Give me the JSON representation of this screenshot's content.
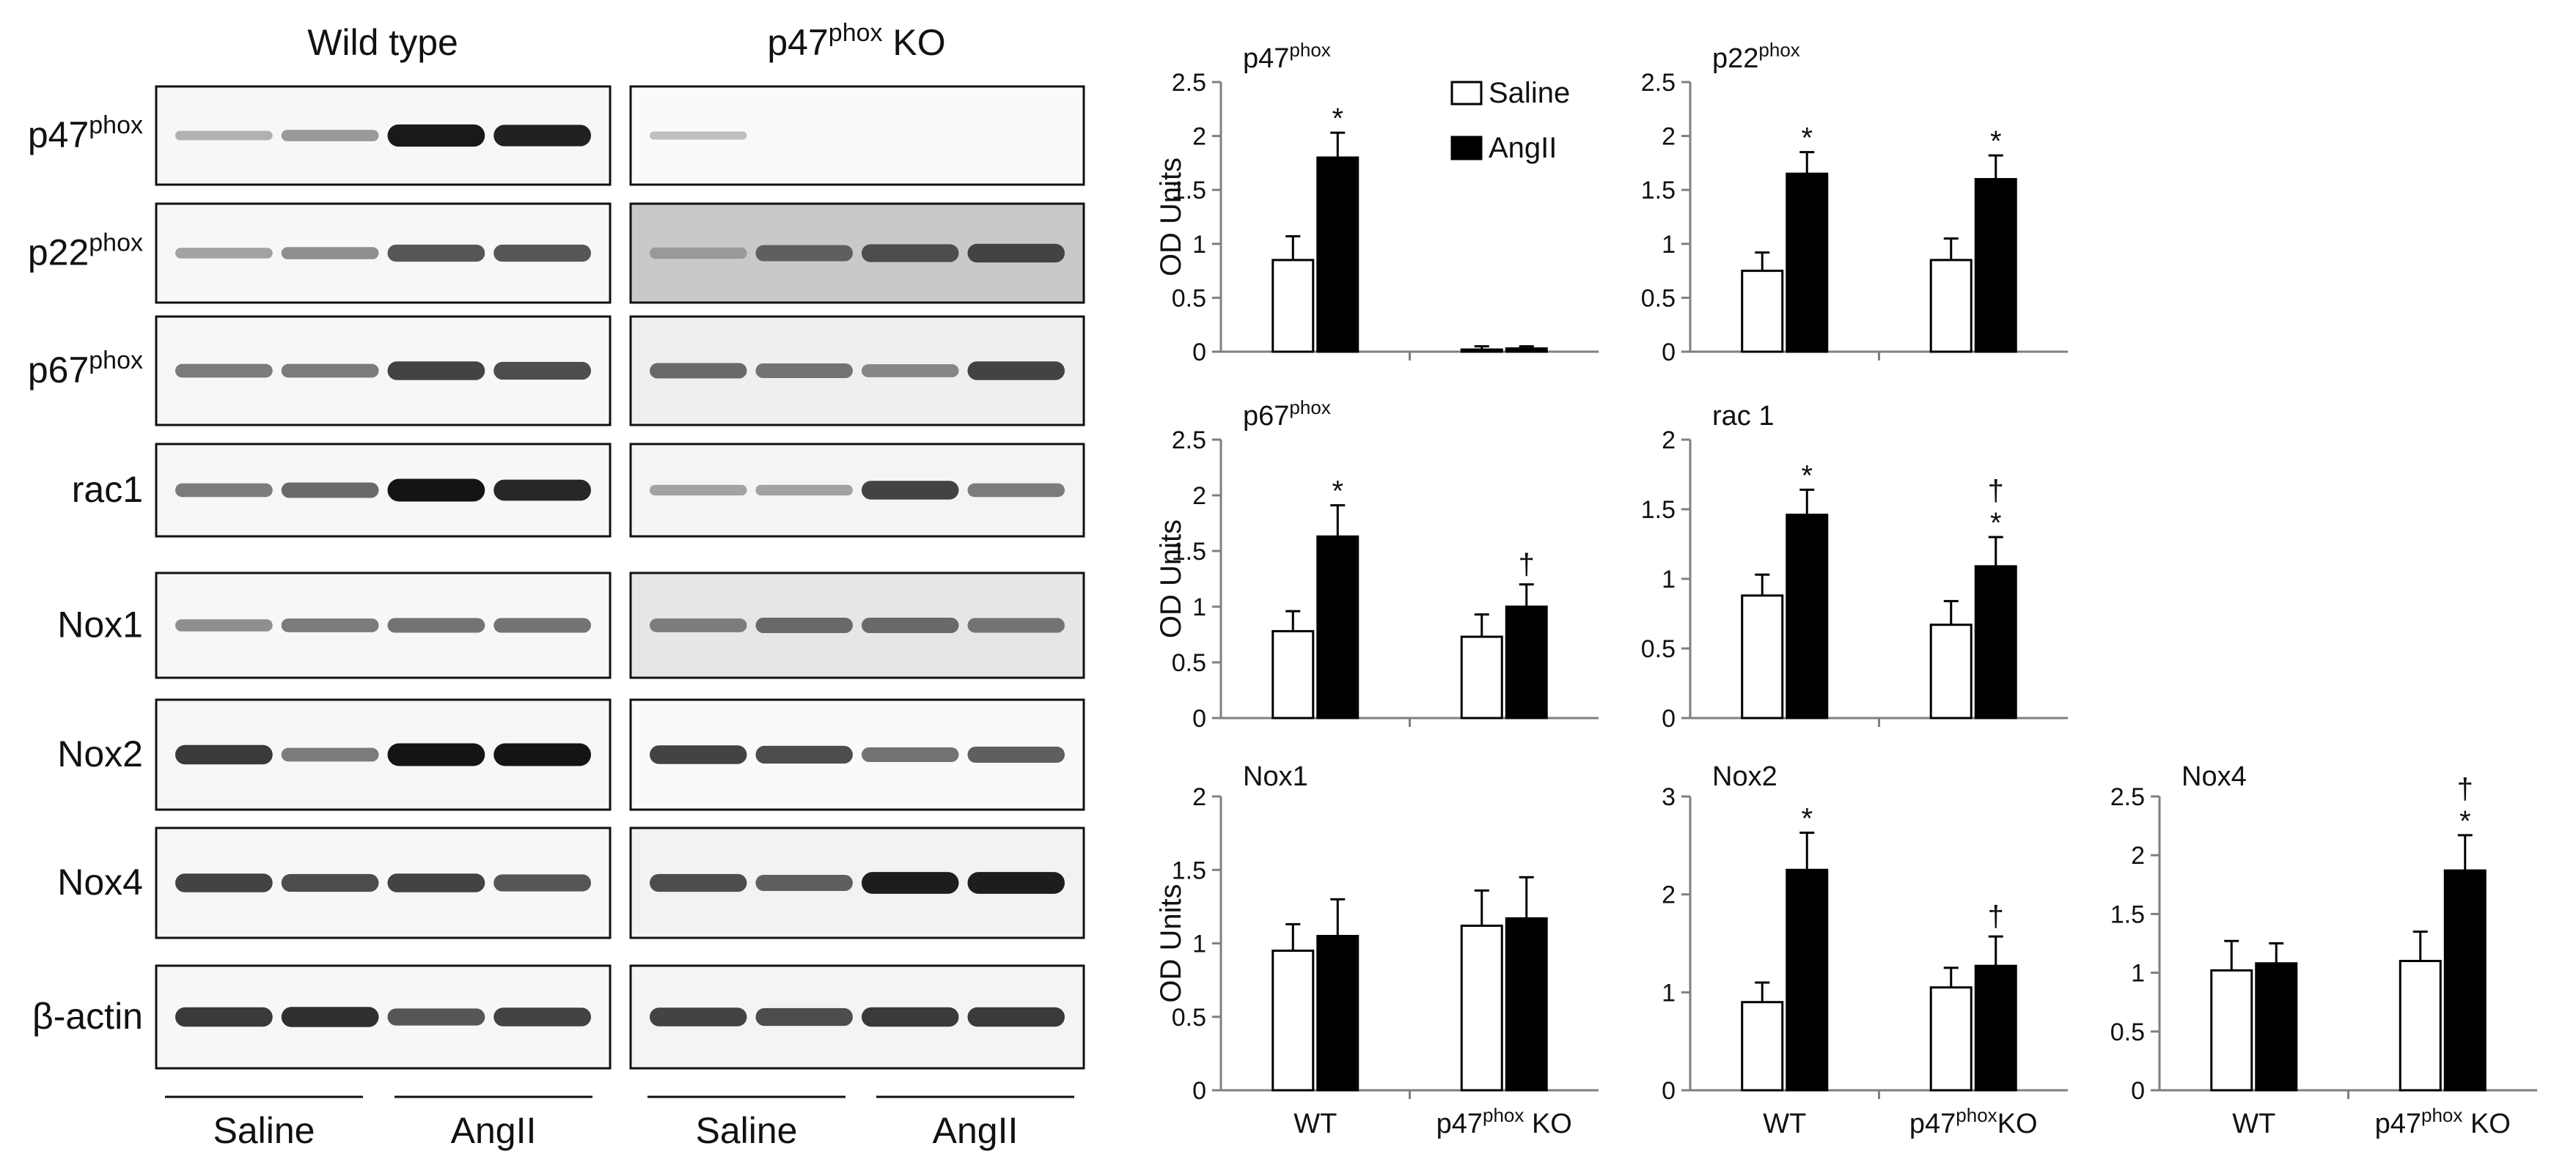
{
  "blots": {
    "group_titles": [
      {
        "main": "Wild type",
        "sup": ""
      },
      {
        "main": "p47",
        "sup": "phox",
        "suffix": " KO"
      }
    ],
    "rows": [
      {
        "label": "p47",
        "sup": "phox",
        "wt": [
          0.12,
          0.25,
          0.92,
          0.88
        ],
        "ko": [
          0.05,
          0.0,
          0.0,
          0.0
        ],
        "ko_bg": "#fafafa"
      },
      {
        "label": "p22",
        "sup": "phox",
        "wt": [
          0.2,
          0.3,
          0.6,
          0.6
        ],
        "ko": [
          0.25,
          0.55,
          0.65,
          0.7
        ],
        "ko_bg": "#c9c9c9"
      },
      {
        "label": "p67",
        "sup": "phox",
        "wt": [
          0.4,
          0.4,
          0.7,
          0.65
        ],
        "ko": [
          0.5,
          0.45,
          0.35,
          0.7
        ],
        "ko_bg": "#efefef"
      },
      {
        "label": "rac1",
        "sup": "",
        "wt": [
          0.4,
          0.5,
          0.95,
          0.85
        ],
        "ko": [
          0.2,
          0.2,
          0.7,
          0.4
        ],
        "ko_bg": "#f4f4f4"
      },
      {
        "label": "Nox1",
        "sup": "",
        "wt": [
          0.3,
          0.4,
          0.45,
          0.45
        ],
        "ko": [
          0.4,
          0.5,
          0.5,
          0.45
        ],
        "ko_bg": "#e6e6e6"
      },
      {
        "label": "Nox2",
        "sup": "",
        "wt": [
          0.75,
          0.4,
          0.95,
          0.95
        ],
        "ko": [
          0.7,
          0.65,
          0.45,
          0.55
        ],
        "ko_bg": "#fafafa"
      },
      {
        "label": "Nox4",
        "sup": "",
        "wt": [
          0.7,
          0.65,
          0.7,
          0.6
        ],
        "ko": [
          0.65,
          0.55,
          0.9,
          0.9
        ],
        "ko_bg": "#f2f2f2"
      },
      {
        "label": "β-actin",
        "sup": "",
        "wt": [
          0.75,
          0.8,
          0.6,
          0.7
        ],
        "ko": [
          0.7,
          0.65,
          0.75,
          0.75
        ],
        "ko_bg": "#f4f4f4"
      }
    ],
    "bottom_labels": [
      "Saline",
      "AngII",
      "Saline",
      "AngII"
    ]
  },
  "legend": [
    {
      "label": "Saline",
      "fill": "#ffffff"
    },
    {
      "label": "AngII",
      "fill": "#000000"
    }
  ],
  "colors": {
    "saline": "#ffffff",
    "angii": "#000000",
    "axis": "#7f7f7f"
  },
  "chart_data": [
    {
      "type": "bar",
      "title": "p47",
      "title_sup": "phox",
      "ylabel": "OD Units",
      "ylim": [
        0,
        2.5
      ],
      "yticks": [
        "0",
        "0.5",
        "1",
        "1.5",
        "2",
        "2.5"
      ],
      "categories": [
        {
          "main": "WT",
          "sup": "",
          "suffix": ""
        },
        {
          "main": "p47",
          "sup": "phox",
          "suffix": " KO"
        }
      ],
      "show_xlabels": false,
      "series": [
        {
          "name": "Saline",
          "values": [
            0.85,
            0.02
          ],
          "errors": [
            0.22,
            0.03
          ]
        },
        {
          "name": "AngII",
          "values": [
            1.8,
            0.03
          ],
          "errors": [
            0.23,
            0.02
          ]
        }
      ],
      "annotations": [
        [
          "",
          ""
        ],
        [
          "*",
          ""
        ]
      ]
    },
    {
      "type": "bar",
      "title": "p22",
      "title_sup": "phox",
      "ylabel": "",
      "ylim": [
        0,
        2.5
      ],
      "yticks": [
        "0",
        "0.5",
        "1",
        "1.5",
        "2",
        "2.5"
      ],
      "categories": [
        {
          "main": "WT",
          "sup": "",
          "suffix": ""
        },
        {
          "main": "p47",
          "sup": "phox",
          "suffix": " KO"
        }
      ],
      "show_xlabels": false,
      "series": [
        {
          "name": "Saline",
          "values": [
            0.75,
            0.85
          ],
          "errors": [
            0.17,
            0.2
          ]
        },
        {
          "name": "AngII",
          "values": [
            1.65,
            1.6
          ],
          "errors": [
            0.2,
            0.22
          ]
        }
      ],
      "annotations": [
        [
          "",
          ""
        ],
        [
          "*",
          "*"
        ]
      ]
    },
    {
      "type": "bar",
      "title": "p67",
      "title_sup": "phox",
      "ylabel": "OD Units",
      "ylim": [
        0,
        2.5
      ],
      "yticks": [
        "0",
        "0.5",
        "1",
        "1.5",
        "2",
        "2.5"
      ],
      "categories": [
        {
          "main": "WT",
          "sup": "",
          "suffix": ""
        },
        {
          "main": "p47",
          "sup": "phox",
          "suffix": " KO"
        }
      ],
      "show_xlabels": false,
      "series": [
        {
          "name": "Saline",
          "values": [
            0.78,
            0.73
          ],
          "errors": [
            0.18,
            0.2
          ]
        },
        {
          "name": "AngII",
          "values": [
            1.63,
            1.0
          ],
          "errors": [
            0.28,
            0.2
          ]
        }
      ],
      "annotations": [
        [
          "",
          ""
        ],
        [
          "*",
          "†"
        ]
      ]
    },
    {
      "type": "bar",
      "title": "rac 1",
      "title_sup": "",
      "ylabel": "",
      "ylim": [
        0,
        2
      ],
      "yticks": [
        "0",
        "0.5",
        "1",
        "1.5",
        "2"
      ],
      "categories": [
        {
          "main": "WT",
          "sup": "",
          "suffix": ""
        },
        {
          "main": "p47",
          "sup": "phox",
          "suffix": " KO"
        }
      ],
      "show_xlabels": false,
      "series": [
        {
          "name": "Saline",
          "values": [
            0.88,
            0.67
          ],
          "errors": [
            0.15,
            0.17
          ]
        },
        {
          "name": "AngII",
          "values": [
            1.46,
            1.09
          ],
          "errors": [
            0.18,
            0.21
          ]
        }
      ],
      "annotations": [
        [
          "",
          ""
        ],
        [
          "*",
          "†\n*"
        ]
      ]
    },
    {
      "type": "bar",
      "title": "Nox1",
      "title_sup": "",
      "ylabel": "OD Units",
      "ylim": [
        0,
        2
      ],
      "yticks": [
        "0",
        "0.5",
        "1",
        "1.5",
        "2"
      ],
      "categories": [
        {
          "main": "WT",
          "sup": "",
          "suffix": ""
        },
        {
          "main": "p47",
          "sup": "phox",
          "suffix": " KO"
        }
      ],
      "show_xlabels": true,
      "series": [
        {
          "name": "Saline",
          "values": [
            0.95,
            1.12
          ],
          "errors": [
            0.18,
            0.24
          ]
        },
        {
          "name": "AngII",
          "values": [
            1.05,
            1.17
          ],
          "errors": [
            0.25,
            0.28
          ]
        }
      ],
      "annotations": [
        [
          "",
          ""
        ],
        [
          "",
          ""
        ]
      ]
    },
    {
      "type": "bar",
      "title": "Nox2",
      "title_sup": "",
      "ylabel": "",
      "ylim": [
        0,
        3
      ],
      "yticks": [
        "0",
        "1",
        "2",
        "3"
      ],
      "categories": [
        {
          "main": "WT",
          "sup": "",
          "suffix": ""
        },
        {
          "main": "p47",
          "sup": "phox",
          "suffix": "KO"
        }
      ],
      "show_xlabels": true,
      "series": [
        {
          "name": "Saline",
          "values": [
            0.9,
            1.05
          ],
          "errors": [
            0.2,
            0.2
          ]
        },
        {
          "name": "AngII",
          "values": [
            2.25,
            1.27
          ],
          "errors": [
            0.38,
            0.3
          ]
        }
      ],
      "annotations": [
        [
          "",
          ""
        ],
        [
          "*",
          "†"
        ]
      ]
    },
    {
      "type": "bar",
      "title": "Nox4",
      "title_sup": "",
      "ylabel": "",
      "ylim": [
        0,
        2.5
      ],
      "yticks": [
        "0",
        "0.5",
        "1",
        "1.5",
        "2",
        "2.5"
      ],
      "categories": [
        {
          "main": "WT",
          "sup": "",
          "suffix": ""
        },
        {
          "main": "p47",
          "sup": "phox",
          "suffix": " KO"
        }
      ],
      "show_xlabels": true,
      "series": [
        {
          "name": "Saline",
          "values": [
            1.02,
            1.1
          ],
          "errors": [
            0.25,
            0.25
          ]
        },
        {
          "name": "AngII",
          "values": [
            1.08,
            1.87
          ],
          "errors": [
            0.17,
            0.3
          ]
        }
      ],
      "annotations": [
        [
          "",
          ""
        ],
        [
          "",
          "†\n*"
        ]
      ]
    }
  ]
}
